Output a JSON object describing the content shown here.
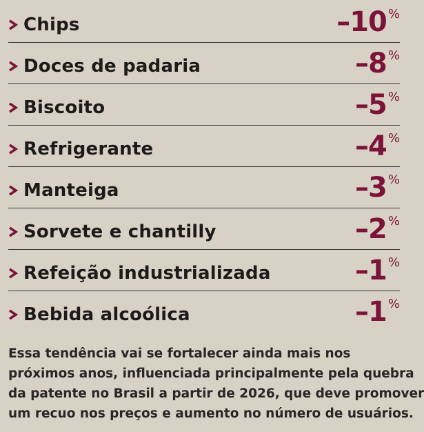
{
  "items": [
    {
      "label": "Chips",
      "value": "–10",
      "unit": "%"
    },
    {
      "label": "Doces de padaria",
      "value": "–8",
      "unit": "%"
    },
    {
      "label": "Biscoito",
      "value": "–5",
      "unit": "%"
    },
    {
      "label": "Refrigerante",
      "value": "–4",
      "unit": "%"
    },
    {
      "label": "Manteiga",
      "value": "–3",
      "unit": "%"
    },
    {
      "label": "Sorvete e chantilly",
      "value": "–2",
      "unit": "%"
    },
    {
      "label": "Refeição industrializada",
      "value": "–1",
      "unit": "%"
    },
    {
      "label": "Bebida alcoólica",
      "value": "–1",
      "unit": "%"
    }
  ],
  "paragraph": {
    "lines": [
      "Essa tendência vai se fortalecer ainda mais nos",
      "próximos anos, influenciada principalmente pela quebra",
      "da patente no Brasil a partir de 2026, que deve promover",
      "um recuo nos preços e aumento no número de usuários."
    ]
  }
}
